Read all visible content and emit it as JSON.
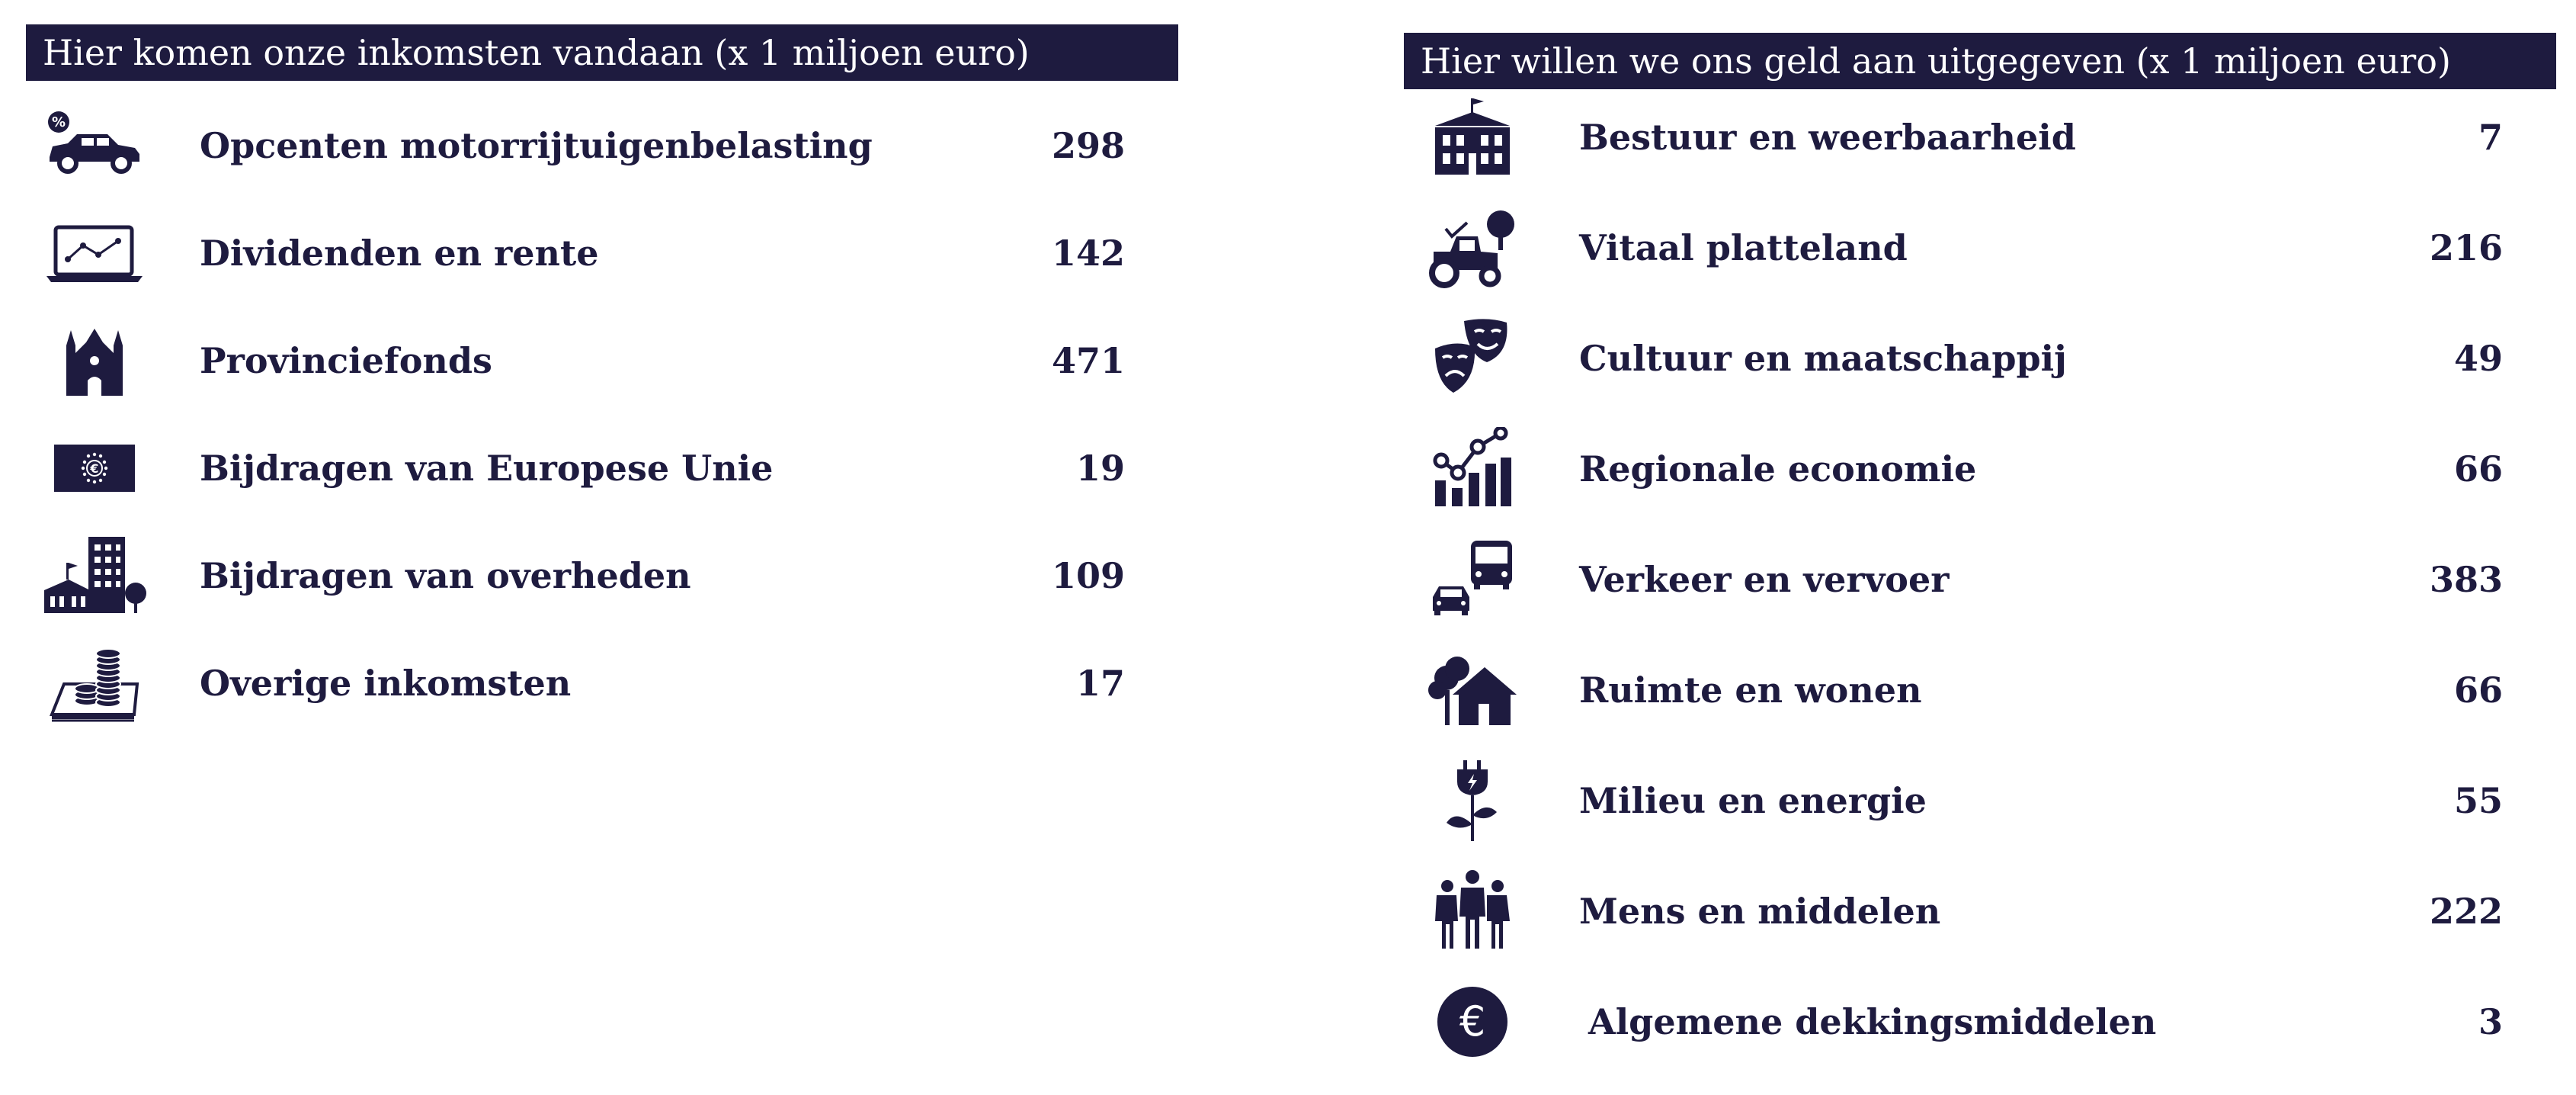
{
  "colors": {
    "navy": "#1e1b3f",
    "white": "#ffffff"
  },
  "income": {
    "title": "Hier komen onze inkomsten vandaan (x 1 miljoen euro)",
    "items": [
      {
        "label": "Opcenten motorrijtuigenbelasting",
        "value": "298",
        "icon": "car-percent-icon"
      },
      {
        "label": "Dividenden en rente",
        "value": "142",
        "icon": "laptop-chart-icon"
      },
      {
        "label": "Provinciefonds",
        "value": "471",
        "icon": "provincial-building-icon"
      },
      {
        "label": "Bijdragen van Europese Unie",
        "value": "19",
        "icon": "eu-flag-icon"
      },
      {
        "label": "Bijdragen van overheden",
        "value": "109",
        "icon": "government-buildings-icon"
      },
      {
        "label": "Overige inkomsten",
        "value": "17",
        "icon": "coins-icon"
      }
    ]
  },
  "expenses": {
    "title": "Hier willen we ons geld aan uitgegeven (x 1 miljoen euro)",
    "items": [
      {
        "label": "Bestuur en weerbaarheid",
        "value": "7",
        "icon": "government-building-icon"
      },
      {
        "label": "Vitaal platteland",
        "value": "216",
        "icon": "tractor-icon"
      },
      {
        "label": "Cultuur en maatschappij",
        "value": "49",
        "icon": "theater-masks-icon"
      },
      {
        "label": "Regionale economie",
        "value": "66",
        "icon": "bar-chart-icon"
      },
      {
        "label": "Verkeer en vervoer",
        "value": "383",
        "icon": "bus-car-icon"
      },
      {
        "label": "Ruimte en wonen",
        "value": "66",
        "icon": "tree-house-icon"
      },
      {
        "label": "Milieu en energie",
        "value": "55",
        "icon": "plug-plant-icon"
      },
      {
        "label": "Mens en middelen",
        "value": "222",
        "icon": "people-icon"
      },
      {
        "label": "Algemene dekkingsmiddelen",
        "value": "3",
        "icon": "euro-coin-icon"
      }
    ]
  }
}
